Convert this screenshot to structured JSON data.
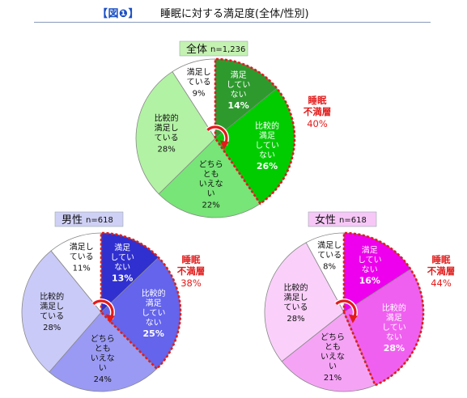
{
  "header": {
    "tag": "【図❶】",
    "title": "睡眠に対する満足度(全体/性別)"
  },
  "chart_data": [
    {
      "type": "pie",
      "group": "全体",
      "n_label": "n=1,236",
      "segments": [
        {
          "label": [
            "満足",
            "してい",
            "ない"
          ],
          "value": 14,
          "color": "#2e9a2e"
        },
        {
          "label": [
            "比較的",
            "満足",
            "してい",
            "ない"
          ],
          "value": 26,
          "color": "#00cc00"
        },
        {
          "label": [
            "どちら",
            "とも",
            "いえな",
            "い"
          ],
          "value": 22,
          "color": "#77e577"
        },
        {
          "label": [
            "比較的",
            "満足し",
            "ている"
          ],
          "value": 28,
          "color": "#b2f2a4"
        },
        {
          "label": [
            "満足し",
            "ている"
          ],
          "value": 9,
          "color": "#ffffff"
        }
      ],
      "unsatisfied": {
        "label": [
          "睡眠",
          "不満層"
        ],
        "value": 40
      },
      "box_color": "#c4f2b2"
    },
    {
      "type": "pie",
      "group": "男性",
      "n_label": "n=618",
      "segments": [
        {
          "label": [
            "満足",
            "してい",
            "ない"
          ],
          "value": 13,
          "color": "#3030d0"
        },
        {
          "label": [
            "比較的",
            "満足",
            "してい",
            "ない"
          ],
          "value": 25,
          "color": "#6464ec"
        },
        {
          "label": [
            "どちら",
            "とも",
            "いえな",
            "い"
          ],
          "value": 24,
          "color": "#9a9af4"
        },
        {
          "label": [
            "比較的",
            "満足し",
            "ている"
          ],
          "value": 28,
          "color": "#cacaf8"
        },
        {
          "label": [
            "満足し",
            "ている"
          ],
          "value": 11,
          "color": "#ffffff"
        }
      ],
      "unsatisfied": {
        "label": [
          "睡眠",
          "不満層"
        ],
        "value": 38
      },
      "box_color": "#cfd0f5"
    },
    {
      "type": "pie",
      "group": "女性",
      "n_label": "n=618",
      "segments": [
        {
          "label": [
            "満足",
            "してい",
            "ない"
          ],
          "value": 16,
          "color": "#ee00ee"
        },
        {
          "label": [
            "比較的",
            "満足",
            "してい",
            "ない"
          ],
          "value": 28,
          "color": "#f060f0"
        },
        {
          "label": [
            "どちら",
            "とも",
            "いえな",
            "い"
          ],
          "value": 21,
          "color": "#f5a4f5"
        },
        {
          "label": [
            "比較的",
            "満足し",
            "ている"
          ],
          "value": 28,
          "color": "#fad0fa"
        },
        {
          "label": [
            "満足し",
            "ている"
          ],
          "value": 8,
          "color": "#ffffff"
        }
      ],
      "unsatisfied": {
        "label": [
          "睡眠",
          "不満層"
        ],
        "value": 44
      },
      "box_color": "#f7c8f7"
    }
  ],
  "colors": {
    "outline": "#888888",
    "highlight": "#e21b1b",
    "tag": "#1a4fc4"
  },
  "pct_suffix": "%"
}
